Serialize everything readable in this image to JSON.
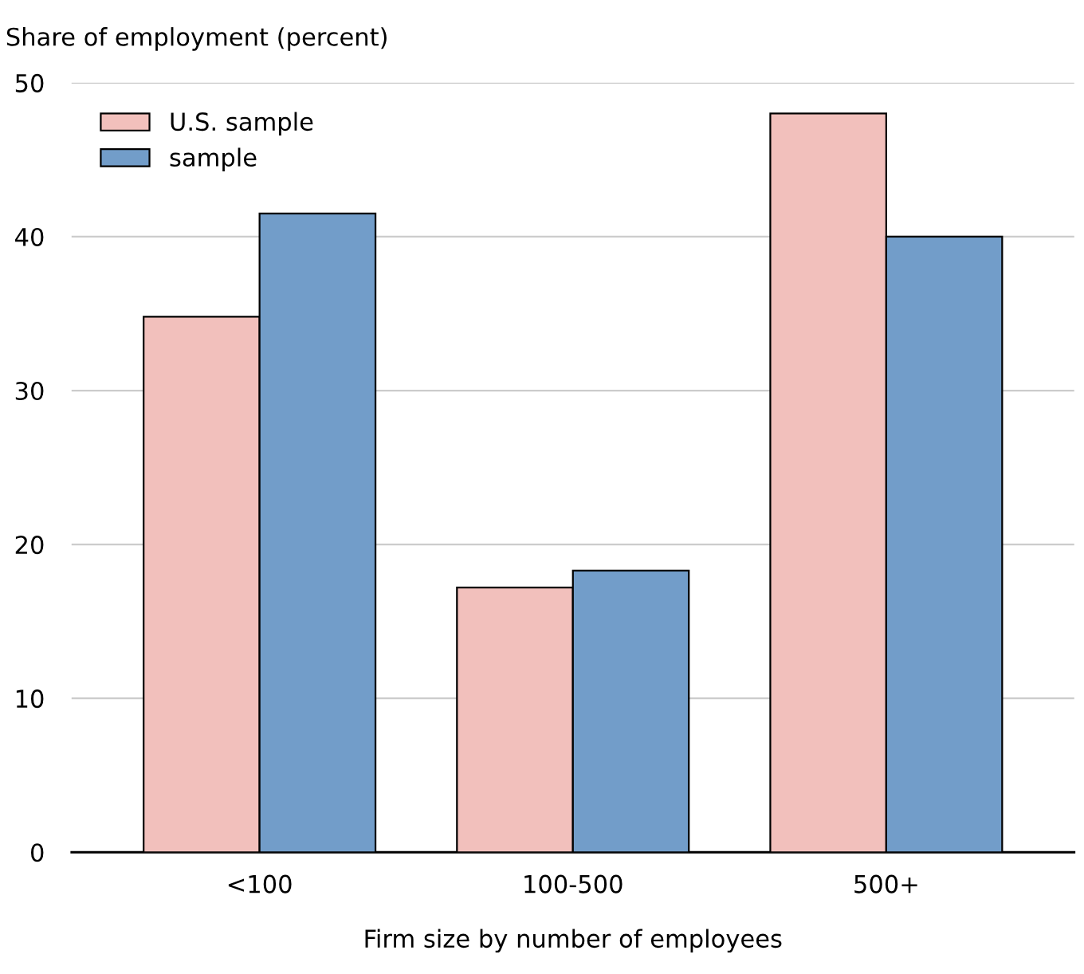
{
  "chart_data": {
    "type": "bar",
    "ylabel": "Share of employment (percent)",
    "xlabel": "Firm size by number of employees",
    "categories": [
      "<100",
      "100-500",
      "500+"
    ],
    "series": [
      {
        "name": "U.S. sample",
        "color": "#f2c0bc",
        "values": [
          34.8,
          17.2,
          48.0
        ]
      },
      {
        "name": "sample",
        "color": "#729dc9",
        "values": [
          41.5,
          18.3,
          40.0
        ]
      }
    ],
    "ylim": [
      0,
      50
    ],
    "yticks": [
      0,
      10,
      20,
      30,
      40,
      50
    ],
    "grid": "y",
    "legend": "top left"
  }
}
